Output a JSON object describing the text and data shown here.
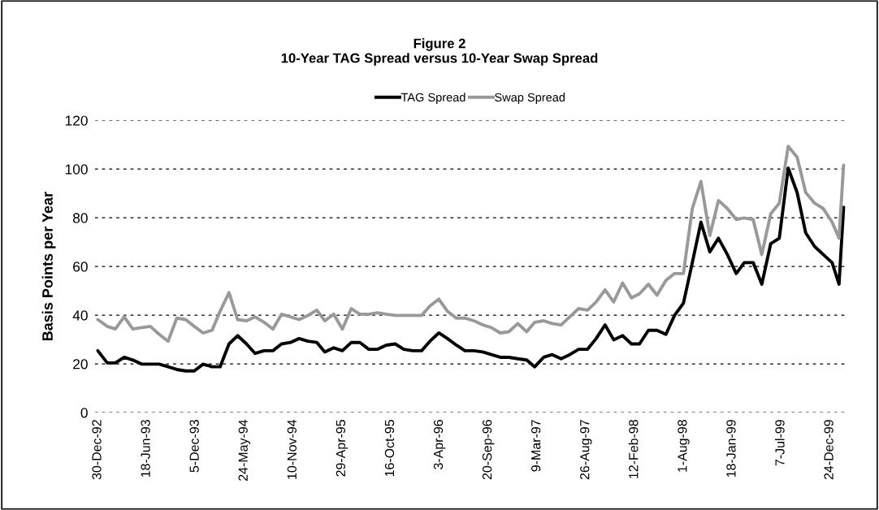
{
  "chart_data": {
    "type": "line",
    "title": "Figure 2\n10-Year TAG Spread versus 10-Year Swap Spread",
    "ylabel": "Basis Points per Year",
    "x": [
      "1992-12-30",
      "1993-02-01",
      "1993-03-01",
      "1993-04-01",
      "1993-05-01",
      "1993-06-01",
      "1993-07-01",
      "1993-08-01",
      "1993-09-01",
      "1993-10-01",
      "1993-11-01",
      "1993-12-01",
      "1994-01-01",
      "1994-02-01",
      "1994-03-01",
      "1994-04-01",
      "1994-05-01",
      "1994-06-01",
      "1994-07-01",
      "1994-08-01",
      "1994-09-01",
      "1994-10-01",
      "1994-11-01",
      "1994-12-01",
      "1995-01-01",
      "1995-02-01",
      "1995-03-01",
      "1995-04-01",
      "1995-05-01",
      "1995-06-01",
      "1995-07-01",
      "1995-08-01",
      "1995-09-01",
      "1995-10-01",
      "1995-11-01",
      "1995-12-01",
      "1996-01-01",
      "1996-02-01",
      "1996-03-01",
      "1996-04-01",
      "1996-05-01",
      "1996-06-01",
      "1996-07-01",
      "1996-08-01",
      "1996-09-01",
      "1996-10-01",
      "1996-11-01",
      "1996-12-01",
      "1997-01-01",
      "1997-02-01",
      "1997-03-01",
      "1997-04-01",
      "1997-05-01",
      "1997-06-01",
      "1997-07-01",
      "1997-08-01",
      "1997-09-01",
      "1997-10-01",
      "1997-11-01",
      "1997-12-01",
      "1998-01-01",
      "1998-02-01",
      "1998-03-01",
      "1998-04-01",
      "1998-05-01",
      "1998-06-01",
      "1998-07-01",
      "1998-08-01",
      "1998-09-01",
      "1998-10-01",
      "1998-11-01",
      "1998-12-01",
      "1999-01-01",
      "1999-02-01",
      "1999-03-01",
      "1999-04-01",
      "1999-05-01",
      "1999-06-01",
      "1999-07-01",
      "1999-08-01",
      "1999-09-01",
      "1999-10-01",
      "1999-11-01",
      "1999-12-01",
      "2000-01-01",
      "2000-01-25",
      "2000-02-10"
    ],
    "series": [
      {
        "name": "TAG Spread",
        "color": "#000000",
        "values": [
          25.4,
          20.4,
          20.4,
          22.7,
          21.6,
          19.9,
          19.9,
          19.9,
          18.8,
          17.7,
          17.1,
          17.1,
          19.9,
          18.8,
          18.8,
          28.2,
          31.6,
          28.2,
          24.3,
          25.4,
          25.4,
          28.2,
          28.8,
          30.4,
          29.3,
          28.8,
          24.9,
          26.6,
          25.4,
          28.8,
          28.8,
          26.0,
          26.0,
          27.7,
          28.2,
          26.0,
          25.4,
          25.4,
          29.3,
          32.7,
          30.4,
          27.7,
          25.4,
          25.4,
          24.9,
          23.8,
          22.7,
          22.7,
          22.1,
          21.6,
          18.8,
          22.7,
          23.8,
          22.1,
          23.8,
          26.0,
          26.0,
          30.4,
          36.0,
          29.9,
          31.6,
          28.2,
          28.2,
          33.8,
          33.8,
          32.1,
          39.9,
          44.9,
          61.6,
          78.2,
          66.0,
          71.6,
          64.9,
          57.1,
          61.6,
          61.6,
          52.7,
          69.3,
          71.6,
          100.4,
          90.4,
          73.8,
          68.2,
          64.9,
          61.6,
          52.7,
          84.3
        ]
      },
      {
        "name": "Swap Spread",
        "color": "#999999",
        "values": [
          38.2,
          35.4,
          34.3,
          39.3,
          34.3,
          34.9,
          35.4,
          32.1,
          29.3,
          38.8,
          38.2,
          35.4,
          32.7,
          33.8,
          41.6,
          49.3,
          38.2,
          37.7,
          39.3,
          37.1,
          34.3,
          40.4,
          39.3,
          38.2,
          39.9,
          42.1,
          37.7,
          40.4,
          34.3,
          42.7,
          40.4,
          40.4,
          41.0,
          40.4,
          39.9,
          39.9,
          39.9,
          39.9,
          43.8,
          46.6,
          41.6,
          38.8,
          38.8,
          37.7,
          36.0,
          34.9,
          32.7,
          33.2,
          36.6,
          33.2,
          37.1,
          37.7,
          36.6,
          36.0,
          39.3,
          42.7,
          42.1,
          45.4,
          50.4,
          45.4,
          53.2,
          47.1,
          48.8,
          52.7,
          48.2,
          54.3,
          57.1,
          57.1,
          83.8,
          94.9,
          72.7,
          87.1,
          83.8,
          79.3,
          79.9,
          79.3,
          64.9,
          81.6,
          86.0,
          109.3,
          104.9,
          90.4,
          86.0,
          83.8,
          78.2,
          71.6,
          101.6
        ]
      }
    ],
    "xlim": [
      "1992-12-20",
      "2000-02-20"
    ],
    "xticks": [
      {
        "value": "1992-12-30",
        "label": "30-Dec-92"
      },
      {
        "value": "1993-06-18",
        "label": "18-Jun-93"
      },
      {
        "value": "1993-12-05",
        "label": "5-Dec-93"
      },
      {
        "value": "1994-05-24",
        "label": "24-May-94"
      },
      {
        "value": "1994-11-10",
        "label": "10-Nov-94"
      },
      {
        "value": "1995-04-29",
        "label": "29-Apr-95"
      },
      {
        "value": "1995-10-16",
        "label": "16-Oct-95"
      },
      {
        "value": "1996-04-03",
        "label": "3-Apr-96"
      },
      {
        "value": "1996-09-20",
        "label": "20-Sep-96"
      },
      {
        "value": "1997-03-09",
        "label": "9-Mar-97"
      },
      {
        "value": "1997-08-26",
        "label": "26-Aug-97"
      },
      {
        "value": "1998-02-12",
        "label": "12-Feb-98"
      },
      {
        "value": "1998-08-01",
        "label": "1-Aug-98"
      },
      {
        "value": "1999-01-18",
        "label": "18-Jan-99"
      },
      {
        "value": "1999-07-07",
        "label": "7-Jul-99"
      },
      {
        "value": "1999-12-24",
        "label": "24-Dec-99"
      }
    ],
    "ylim": [
      0,
      120
    ],
    "yticks": [
      0,
      20,
      40,
      60,
      80,
      100,
      120
    ],
    "grid": "y",
    "legend": "top",
    "line_style": "solid",
    "marker": "none"
  }
}
